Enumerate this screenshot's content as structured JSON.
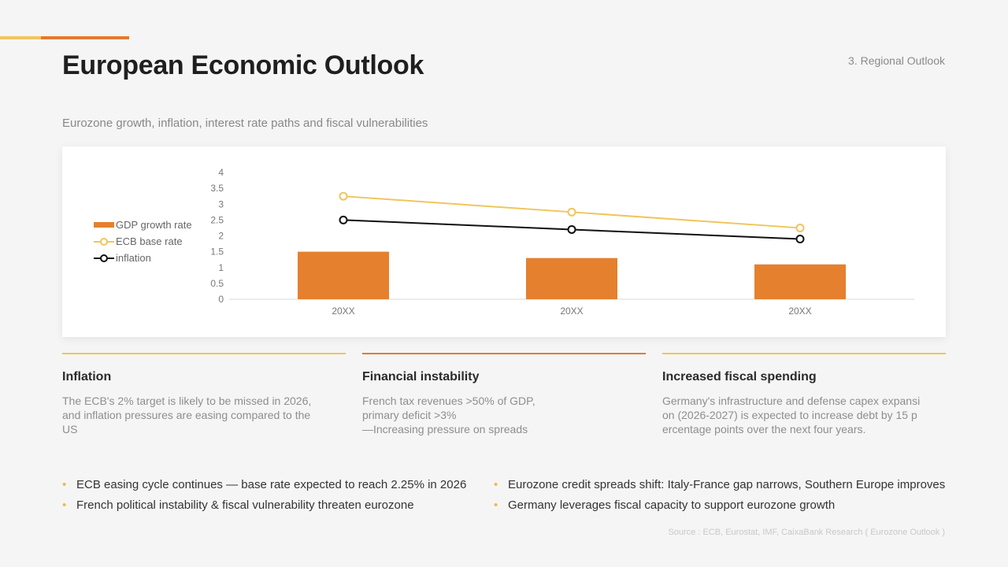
{
  "colors": {
    "accent_light": "#f1c55c",
    "accent_orange": "#e5792f",
    "line_yellow": "#f1c55c",
    "line_black": "#111111",
    "bar_orange": "#e5802f",
    "bullet_dot": "#f1b84a"
  },
  "header": {
    "title": "European Economic Outlook",
    "section": "3. Regional Outlook",
    "subtitle": "Eurozone growth, inflation, interest rate paths and fiscal vulnerabilities"
  },
  "chart_data": {
    "type": "bar",
    "categories": [
      "20XX",
      "20XX",
      "20XX"
    ],
    "ylim": [
      0,
      4
    ],
    "yticks": [
      "4",
      "3.5",
      "3",
      "2.5",
      "2",
      "1.5",
      "1",
      "0.5",
      "0"
    ],
    "legend_position": "left",
    "series": [
      {
        "name": "GDP growth rate",
        "type": "bar",
        "values": [
          1.5,
          1.3,
          1.1
        ]
      },
      {
        "name": "ECB base rate",
        "type": "line",
        "values": [
          3.25,
          2.75,
          2.25
        ]
      },
      {
        "name": "inflation",
        "type": "line",
        "values": [
          2.5,
          2.2,
          1.9
        ]
      }
    ]
  },
  "cards": [
    {
      "title": "Inflation",
      "body": "The ECB's 2% target is likely to be missed in 2026,\nand inflation pressures are easing compared to the\nUS"
    },
    {
      "title": "Financial instability",
      "body": "French tax revenues >50% of GDP,\nprimary deficit >3%\n—Increasing pressure on spreads"
    },
    {
      "title": "Increased fiscal spending",
      "body": "Germany's infrastructure and defense capex expansi\non (2026-2027) is expected to increase debt by 15 p\nercentage points over the next four years."
    }
  ],
  "bullets_left": [
    "ECB easing cycle continues — base rate expected to reach 2.25% in 2026",
    "French political instability & fiscal vulnerability threaten eurozone"
  ],
  "bullets_right": [
    "Eurozone credit spreads shift: Italy-France gap narrows, Southern Europe improves",
    "Germany leverages fiscal capacity to support eurozone growth"
  ],
  "source": "Source : ECB, Eurostat, IMF, CaixaBank Research ( Eurozone Outlook )"
}
